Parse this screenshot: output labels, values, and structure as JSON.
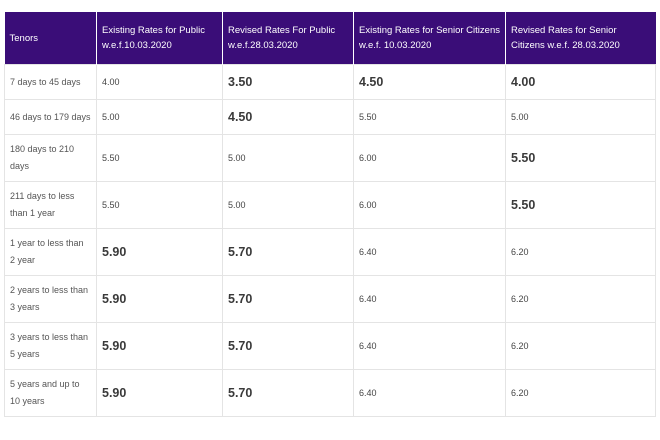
{
  "table": {
    "headers": [
      "Tenors",
      "Existing Rates for Public w.e.f.10.03.2020",
      "Revised Rates For Public w.e.f.28.03.2020",
      "Existing Rates for Senior Citizens w.e.f. 10.03.2020",
      "Revised Rates for Senior Citizens w.e.f. 28.03.2020"
    ],
    "rows": [
      [
        "7 days to 45 days",
        "4.00",
        "3.50",
        "4.50",
        "4.00"
      ],
      [
        "46 days to 179 days",
        "5.00",
        "4.50",
        "5.50",
        "5.00"
      ],
      [
        "180 days to 210 days",
        "5.50",
        "5.00",
        "6.00",
        "5.50"
      ],
      [
        "211 days to less than 1 year",
        "5.50",
        "5.00",
        "6.00",
        "5.50"
      ],
      [
        "1 year to less than 2 year",
        "5.90",
        "5.70",
        "6.40",
        "6.20"
      ],
      [
        "2 years to less than 3 years",
        "5.90",
        "5.70",
        "6.40",
        "6.20"
      ],
      [
        "3 years to less than 5 years",
        "5.90",
        "5.70",
        "6.40",
        "6.20"
      ],
      [
        "5 years and up to 10 years",
        "5.90",
        "5.70",
        "6.40",
        "6.20"
      ]
    ]
  }
}
